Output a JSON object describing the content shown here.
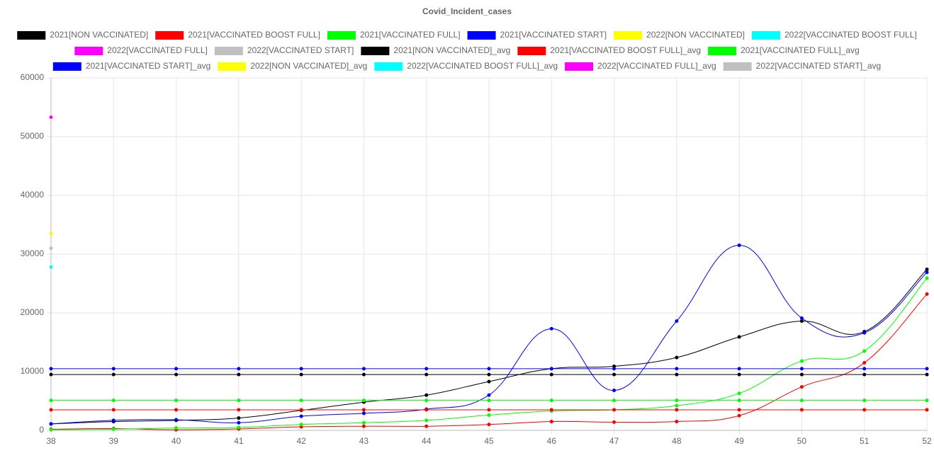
{
  "chart_data": {
    "type": "line",
    "title": "Covid_Incident_cases",
    "x": [
      38,
      39,
      40,
      41,
      42,
      43,
      44,
      45,
      46,
      47,
      48,
      49,
      50,
      51,
      52
    ],
    "xlim": [
      38,
      52
    ],
    "xticks": [
      38,
      39,
      40,
      41,
      42,
      43,
      44,
      45,
      46,
      47,
      48,
      49,
      50,
      51,
      52
    ],
    "ylim": [
      0,
      60000
    ],
    "yticks": [
      0,
      10000,
      20000,
      30000,
      40000,
      50000,
      60000
    ],
    "grid": true,
    "legend": "top",
    "series": [
      {
        "name": "2021[NON VACCINATED]",
        "color": "#000000",
        "values": [
          1100,
          1500,
          1700,
          2100,
          3400,
          4800,
          6000,
          8300,
          10500,
          10900,
          12400,
          15900,
          18600,
          16800,
          27400
        ]
      },
      {
        "name": "2021[VACCINATED BOOST FULL]",
        "color": "#ff0000",
        "values": [
          200,
          300,
          100,
          250,
          600,
          700,
          700,
          1000,
          1500,
          1400,
          1500,
          2500,
          7400,
          11500,
          23200
        ]
      },
      {
        "name": "2021[VACCINATED FULL]",
        "color": "#00ff00",
        "values": [
          100,
          200,
          400,
          500,
          1000,
          1300,
          1700,
          2600,
          3300,
          3500,
          4200,
          6300,
          11800,
          13500,
          25900
        ]
      },
      {
        "name": "2021[VACCINATED START]",
        "color": "#0000ff",
        "values": [
          1100,
          1700,
          1800,
          1300,
          2400,
          2900,
          3600,
          6000,
          17300,
          6800,
          18600,
          31500,
          19100,
          16600,
          26900
        ]
      },
      {
        "name": "2022[NON VACCINATED]",
        "color": "#ffff00",
        "values": [
          33500,
          null,
          null,
          null,
          null,
          null,
          null,
          null,
          null,
          null,
          null,
          null,
          null,
          null,
          null
        ]
      },
      {
        "name": "2022[VACCINATED BOOST FULL]",
        "color": "#00ffff",
        "values": [
          27800,
          null,
          null,
          null,
          null,
          null,
          null,
          null,
          null,
          null,
          null,
          null,
          null,
          null,
          null
        ]
      },
      {
        "name": "2022[VACCINATED FULL]",
        "color": "#ff00ff",
        "values": [
          53300,
          null,
          null,
          null,
          null,
          null,
          null,
          null,
          null,
          null,
          null,
          null,
          null,
          null,
          null
        ]
      },
      {
        "name": "2022[VACCINATED START]",
        "color": "#c0c0c0",
        "values": [
          31000,
          null,
          null,
          null,
          null,
          null,
          null,
          null,
          null,
          null,
          null,
          null,
          null,
          null,
          null
        ]
      },
      {
        "name": "2021[NON VACCINATED]_avg",
        "color": "#000000",
        "values": [
          9500,
          9500,
          9500,
          9500,
          9500,
          9500,
          9500,
          9500,
          9500,
          9500,
          9500,
          9500,
          9500,
          9500,
          9500
        ]
      },
      {
        "name": "2021[VACCINATED BOOST FULL]_avg",
        "color": "#ff0000",
        "values": [
          3500,
          3500,
          3500,
          3500,
          3500,
          3500,
          3500,
          3500,
          3500,
          3500,
          3500,
          3500,
          3500,
          3500,
          3500
        ]
      },
      {
        "name": "2021[VACCINATED FULL]_avg",
        "color": "#00ff00",
        "values": [
          5100,
          5100,
          5100,
          5100,
          5100,
          5100,
          5100,
          5100,
          5100,
          5100,
          5100,
          5100,
          5100,
          5100,
          5100
        ]
      },
      {
        "name": "2021[VACCINATED START]_avg",
        "color": "#0000ff",
        "values": [
          10500,
          10500,
          10500,
          10500,
          10500,
          10500,
          10500,
          10500,
          10500,
          10500,
          10500,
          10500,
          10500,
          10500,
          10500
        ]
      },
      {
        "name": "2022[NON VACCINATED]_avg",
        "color": "#ffff00",
        "values": [
          null,
          null,
          null,
          null,
          null,
          null,
          null,
          null,
          null,
          null,
          null,
          null,
          null,
          null,
          null
        ]
      },
      {
        "name": "2022[VACCINATED BOOST FULL]_avg",
        "color": "#00ffff",
        "values": [
          null,
          null,
          null,
          null,
          null,
          null,
          null,
          null,
          null,
          null,
          null,
          null,
          null,
          null,
          null
        ]
      },
      {
        "name": "2022[VACCINATED FULL]_avg",
        "color": "#ff00ff",
        "values": [
          null,
          null,
          null,
          null,
          null,
          null,
          null,
          null,
          null,
          null,
          null,
          null,
          null,
          null,
          null
        ]
      },
      {
        "name": "2022[VACCINATED START]_avg",
        "color": "#c0c0c0",
        "values": [
          null,
          null,
          null,
          null,
          null,
          null,
          null,
          null,
          null,
          null,
          null,
          null,
          null,
          null,
          null
        ]
      }
    ]
  }
}
